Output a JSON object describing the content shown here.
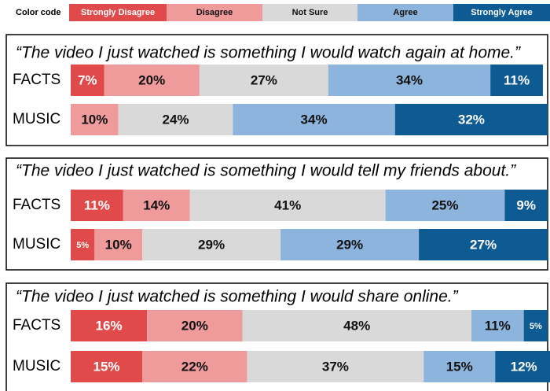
{
  "chart_data": {
    "type": "bar",
    "orientation": "horizontal",
    "stacked": true,
    "legend_title": "Color code",
    "xlim": [
      0,
      100
    ],
    "series": [
      {
        "name": "Strongly Disagree",
        "color": "#e04a4a"
      },
      {
        "name": "Disagree",
        "color": "#f09b9b"
      },
      {
        "name": "Not Sure",
        "color": "#d9d9d9"
      },
      {
        "name": "Agree",
        "color": "#8db4dd"
      },
      {
        "name": "Strongly Agree",
        "color": "#0e5a93"
      }
    ],
    "panels": [
      {
        "title": "“The video I just watched is something I would watch again at home.”",
        "categories": [
          "FACTS",
          "MUSIC"
        ],
        "series": [
          {
            "values": [
              7,
              null
            ],
            "value_labels": [
              "7%",
              null
            ]
          },
          {
            "values": [
              20,
              10
            ],
            "value_labels": [
              "20%",
              "10%"
            ]
          },
          {
            "values": [
              27,
              24
            ],
            "value_labels": [
              "27%",
              "24%"
            ]
          },
          {
            "values": [
              34,
              34
            ],
            "value_labels": [
              "34%",
              "34%"
            ]
          },
          {
            "values": [
              11,
              32
            ],
            "value_labels": [
              "11%",
              "32%"
            ]
          }
        ]
      },
      {
        "title": "“The video I just watched is something I would tell my friends about.”",
        "categories": [
          "FACTS",
          "MUSIC"
        ],
        "series": [
          {
            "values": [
              11,
              5
            ],
            "value_labels": [
              "11%",
              "5%"
            ]
          },
          {
            "values": [
              14,
              10
            ],
            "value_labels": [
              "14%",
              "10%"
            ]
          },
          {
            "values": [
              41,
              29
            ],
            "value_labels": [
              "41%",
              "29%"
            ]
          },
          {
            "values": [
              25,
              29
            ],
            "value_labels": [
              "25%",
              "29%"
            ]
          },
          {
            "values": [
              9,
              27
            ],
            "value_labels": [
              "9%",
              "27%"
            ]
          }
        ]
      },
      {
        "title": "“The video I just watched is something I would share online.”",
        "categories": [
          "FACTS",
          "MUSIC"
        ],
        "series": [
          {
            "values": [
              16,
              15
            ],
            "value_labels": [
              "16%",
              "15%"
            ]
          },
          {
            "values": [
              20,
              22
            ],
            "value_labels": [
              "20%",
              "22%"
            ]
          },
          {
            "values": [
              48,
              37
            ],
            "value_labels": [
              "48%",
              "37%"
            ]
          },
          {
            "values": [
              11,
              15
            ],
            "value_labels": [
              "11%",
              "15%"
            ]
          },
          {
            "values": [
              5,
              12
            ],
            "value_labels": [
              "5%",
              "12%"
            ]
          }
        ]
      }
    ]
  }
}
